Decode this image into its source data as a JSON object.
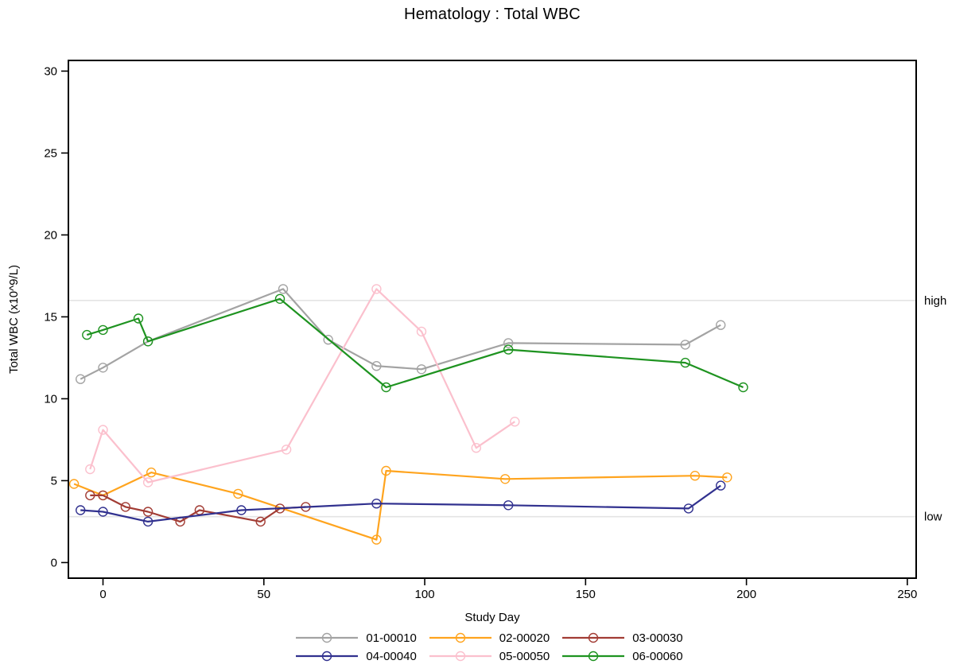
{
  "title": "Hematology : Total WBC",
  "chart_data": {
    "type": "line",
    "title": "Hematology : Total WBC",
    "xlabel": "Study Day",
    "ylabel": "Total WBC (x10^9/L)",
    "xlim": [
      -11,
      253
    ],
    "ylim": [
      -1,
      30.7
    ],
    "x_ticks": [
      0,
      50,
      100,
      150,
      200,
      250
    ],
    "y_ticks": [
      0,
      5,
      10,
      15,
      20,
      25,
      30
    ],
    "grid": false,
    "legend_position": "bottom",
    "reference_lines": [
      {
        "value": 16,
        "label": "high"
      },
      {
        "value": 2.8,
        "label": "low"
      }
    ],
    "series": [
      {
        "name": "01-00010",
        "color": "#A3A3A3",
        "x": [
          -7,
          0,
          14,
          56,
          70,
          85,
          99,
          126,
          181,
          192
        ],
        "y": [
          11.2,
          11.9,
          13.5,
          16.7,
          13.6,
          12.0,
          11.8,
          13.4,
          13.3,
          14.5
        ]
      },
      {
        "name": "02-00020",
        "color": "#FFA41E",
        "x": [
          -9,
          0,
          15,
          42,
          85,
          88,
          125,
          184,
          194
        ],
        "y": [
          4.8,
          4.1,
          5.5,
          4.2,
          1.4,
          5.6,
          5.1,
          5.3,
          5.2
        ]
      },
      {
        "name": "03-00030",
        "color": "#A23C34",
        "x": [
          -4,
          0,
          7,
          14,
          24,
          30,
          49,
          55,
          63
        ],
        "y": [
          4.1,
          4.1,
          3.4,
          3.1,
          2.5,
          3.2,
          2.5,
          3.3,
          3.4
        ]
      },
      {
        "name": "04-00040",
        "color": "#31318F",
        "x": [
          -7,
          0,
          14,
          43,
          85,
          126,
          182,
          192
        ],
        "y": [
          3.2,
          3.1,
          2.5,
          3.2,
          3.6,
          3.5,
          3.3,
          4.7
        ]
      },
      {
        "name": "05-00050",
        "color": "#FBC0CD",
        "x": [
          -4,
          0,
          14,
          57,
          85,
          99,
          116,
          128
        ],
        "y": [
          5.7,
          8.1,
          4.9,
          6.9,
          16.7,
          14.1,
          7.0,
          8.6
        ]
      },
      {
        "name": "06-00060",
        "color": "#1E9320",
        "x": [
          -5,
          0,
          11,
          14,
          55,
          88,
          126,
          181,
          199
        ],
        "y": [
          13.9,
          14.2,
          14.9,
          13.5,
          16.1,
          10.7,
          13.0,
          12.2,
          10.7
        ]
      }
    ]
  },
  "styles": {
    "frame_color": "#000000",
    "reference_line_color": "#E4E4E4",
    "text_color": "#000000",
    "background": "#FFFFFF"
  }
}
